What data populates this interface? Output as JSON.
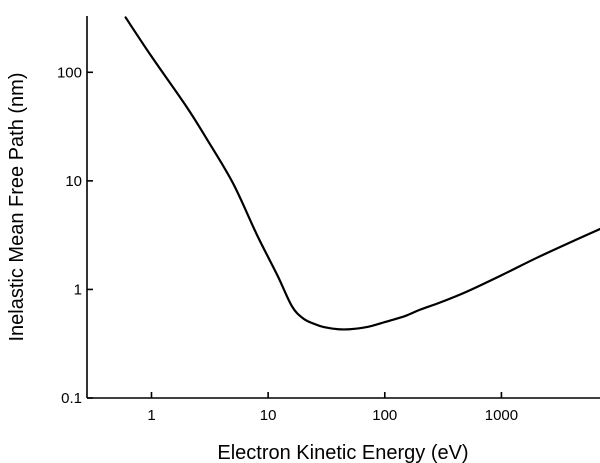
{
  "chart_data": {
    "type": "line",
    "title": "",
    "xlabel": "Electron Kinetic Energy (eV)",
    "ylabel": "Inelastic Mean Free Path (nm)",
    "xscale": "log",
    "yscale": "log",
    "xlim": [
      0.28,
      7000
    ],
    "ylim": [
      0.1,
      330
    ],
    "xticks": [
      1,
      10,
      100,
      1000
    ],
    "xtick_labels": [
      "1",
      "10",
      "100",
      "1000"
    ],
    "yticks": [
      0.1,
      1,
      10,
      100
    ],
    "ytick_labels": [
      "0.1",
      "1",
      "10",
      "100"
    ],
    "grid": false,
    "series": [
      {
        "name": "",
        "x": [
          0.6,
          1,
          2,
          3,
          5,
          8,
          12,
          16,
          20,
          25,
          30,
          40,
          50,
          70,
          100,
          150,
          200,
          300,
          500,
          1000,
          2000,
          4000,
          7000
        ],
        "y": [
          320,
          140,
          48,
          24,
          9.5,
          3.2,
          1.35,
          0.7,
          0.54,
          0.48,
          0.45,
          0.43,
          0.43,
          0.45,
          0.5,
          0.57,
          0.65,
          0.76,
          0.95,
          1.35,
          1.95,
          2.75,
          3.6
        ]
      }
    ]
  }
}
